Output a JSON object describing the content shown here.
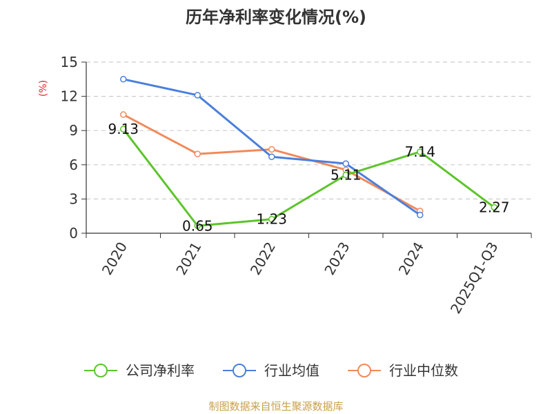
{
  "chart_data": {
    "type": "line",
    "title": "历年净利率变化情况(%)",
    "ylabel": "(%)",
    "xlabel": "",
    "categories": [
      "2020",
      "2021",
      "2022",
      "2023",
      "2024",
      "2025Q1-Q3"
    ],
    "ylim": [
      0,
      15
    ],
    "yticks": [
      0,
      3,
      6,
      9,
      12,
      15
    ],
    "grid": true,
    "legend_position": "bottom",
    "series": [
      {
        "name": "公司净利率",
        "color": "#5cc42a",
        "values": [
          9.13,
          0.65,
          1.23,
          5.11,
          7.14,
          2.27
        ],
        "labels": [
          "9.13",
          "0.65",
          "1.23",
          "5.11",
          "7.14",
          "2.27"
        ]
      },
      {
        "name": "行业均值",
        "color": "#4a7fdc",
        "values": [
          13.5,
          12.1,
          6.7,
          6.1,
          1.6,
          null
        ]
      },
      {
        "name": "行业中位数",
        "color": "#f08a5a",
        "values": [
          10.4,
          6.95,
          7.35,
          5.55,
          1.95,
          null
        ]
      }
    ]
  },
  "source": "制图数据来自恒生聚源数据库"
}
